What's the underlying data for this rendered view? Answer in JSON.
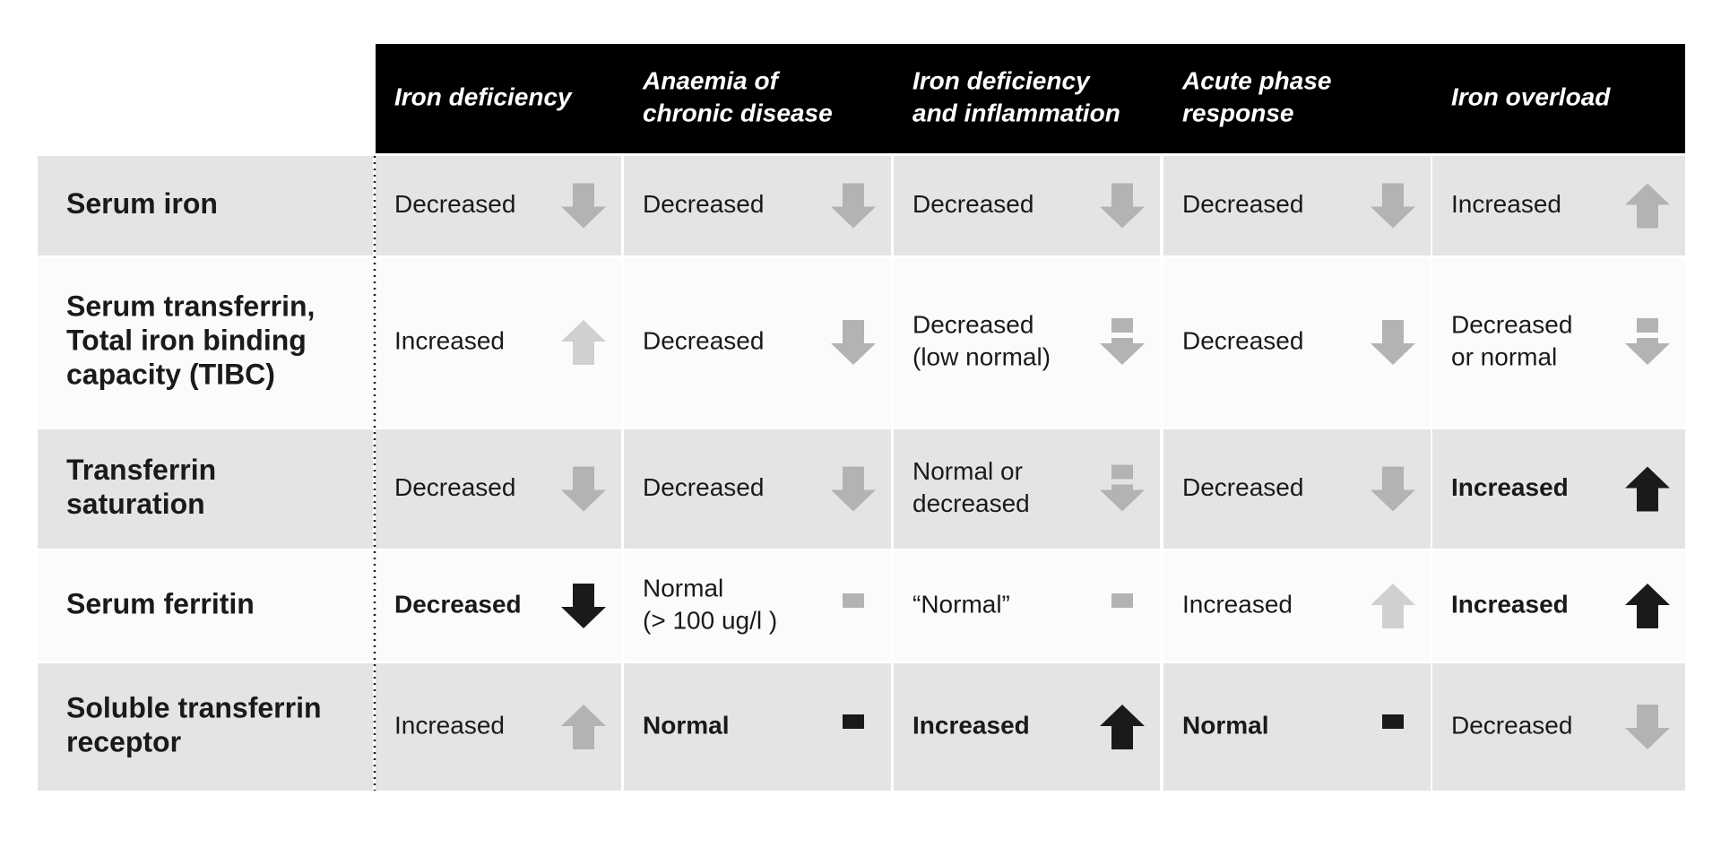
{
  "table": {
    "columns": [
      [
        "Iron deficiency"
      ],
      [
        "Anaemia of",
        "chronic disease"
      ],
      [
        "Iron deficiency",
        "and inflammation"
      ],
      [
        "Acute phase",
        "response"
      ],
      [
        "Iron overload"
      ]
    ],
    "rows": [
      {
        "label": [
          "Serum iron"
        ],
        "cells": [
          [
            "Decreased"
          ],
          [
            "Decreased"
          ],
          [
            "Decreased"
          ],
          [
            "Decreased"
          ],
          [
            "Increased"
          ]
        ]
      },
      {
        "label": [
          "Serum transferrin,",
          "Total iron binding",
          "capacity (TIBC)"
        ],
        "cells": [
          [
            "Increased"
          ],
          [
            "Decreased"
          ],
          [
            "Decreased",
            "(low normal)"
          ],
          [
            "Decreased"
          ],
          [
            "Decreased",
            "or normal"
          ]
        ]
      },
      {
        "label": [
          "Transferrin",
          "saturation"
        ],
        "cells": [
          [
            "Decreased"
          ],
          [
            "Decreased"
          ],
          [
            "Normal or",
            "decreased"
          ],
          [
            "Decreased"
          ],
          [
            "Increased"
          ]
        ]
      },
      {
        "label": [
          "Serum ferritin"
        ],
        "cells": [
          [
            "Decreased"
          ],
          [
            "Normal",
            "(> 100 ug/l )"
          ],
          [
            "“Normal”"
          ],
          [
            "Increased"
          ],
          [
            "Increased"
          ]
        ]
      },
      {
        "label": [
          "Soluble transferrin",
          "receptor"
        ],
        "cells": [
          [
            "Increased"
          ],
          [
            "Normal"
          ],
          [
            "Increased"
          ],
          [
            "Normal"
          ],
          [
            "Decreased"
          ]
        ]
      }
    ]
  }
}
